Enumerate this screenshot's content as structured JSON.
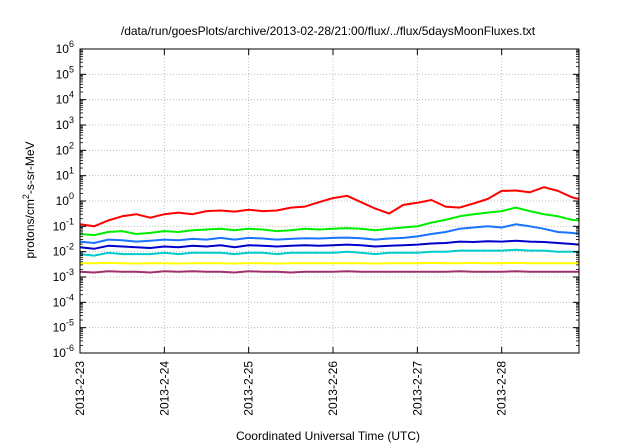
{
  "chart_data": {
    "type": "line",
    "title": "/data/run/goesPlots/archive/2013-02-28/21:00/flux/../flux/5daysMoonFluxes.txt",
    "xlabel": "Coordinated Universal Time (UTC)",
    "ylabel": "protons/cm²-s-sr-MeV",
    "yscale": "log",
    "ylim": [
      1e-06,
      1000000.0
    ],
    "xlim": [
      "2013-02-23 00:00",
      "2013-02-28 22:00"
    ],
    "y_ticks": [
      {
        "value": 1e-06,
        "base": "10",
        "exp": "-6"
      },
      {
        "value": 1e-05,
        "base": "10",
        "exp": "-5"
      },
      {
        "value": 0.0001,
        "base": "10",
        "exp": "-4"
      },
      {
        "value": 0.001,
        "base": "10",
        "exp": "-3"
      },
      {
        "value": 0.01,
        "base": "10",
        "exp": "-2"
      },
      {
        "value": 0.1,
        "base": "10",
        "exp": "-1"
      },
      {
        "value": 1,
        "base": "10",
        "exp": "0"
      },
      {
        "value": 10.0,
        "base": "10",
        "exp": "1"
      },
      {
        "value": 100.0,
        "base": "10",
        "exp": "2"
      },
      {
        "value": 1000.0,
        "base": "10",
        "exp": "3"
      },
      {
        "value": 10000.0,
        "base": "10",
        "exp": "4"
      },
      {
        "value": 100000.0,
        "base": "10",
        "exp": "5"
      },
      {
        "value": 1000000.0,
        "base": "10",
        "exp": "6"
      }
    ],
    "x_ticks": [
      {
        "value": "2013-02-23 00:00",
        "label": "2013-2-23"
      },
      {
        "value": "2013-02-24 00:00",
        "label": "2013-2-24"
      },
      {
        "value": "2013-02-25 00:00",
        "label": "2013-2-25"
      },
      {
        "value": "2013-02-26 00:00",
        "label": "2013-2-26"
      },
      {
        "value": "2013-02-27 00:00",
        "label": "2013-2-27"
      },
      {
        "value": "2013-02-28 00:00",
        "label": "2013-2-28"
      }
    ],
    "grid": true,
    "legend": "none",
    "x": [
      "2013-02-23 00:00",
      "2013-02-23 04:00",
      "2013-02-23 08:00",
      "2013-02-23 12:00",
      "2013-02-23 16:00",
      "2013-02-23 20:00",
      "2013-02-24 00:00",
      "2013-02-24 04:00",
      "2013-02-24 08:00",
      "2013-02-24 12:00",
      "2013-02-24 16:00",
      "2013-02-24 20:00",
      "2013-02-25 00:00",
      "2013-02-25 04:00",
      "2013-02-25 08:00",
      "2013-02-25 12:00",
      "2013-02-25 16:00",
      "2013-02-25 20:00",
      "2013-02-26 00:00",
      "2013-02-26 04:00",
      "2013-02-26 08:00",
      "2013-02-26 12:00",
      "2013-02-26 16:00",
      "2013-02-26 20:00",
      "2013-02-27 00:00",
      "2013-02-27 04:00",
      "2013-02-27 08:00",
      "2013-02-27 12:00",
      "2013-02-27 16:00",
      "2013-02-27 20:00",
      "2013-02-28 00:00",
      "2013-02-28 04:00",
      "2013-02-28 08:00",
      "2013-02-28 12:00",
      "2013-02-28 16:00",
      "2013-02-28 20:00",
      "2013-02-28 22:00"
    ],
    "series": [
      {
        "color": "#ff0000",
        "values": [
          0.12,
          0.1,
          0.17,
          0.25,
          0.3,
          0.22,
          0.3,
          0.35,
          0.3,
          0.4,
          0.42,
          0.38,
          0.45,
          0.4,
          0.42,
          0.55,
          0.6,
          0.9,
          1.3,
          1.6,
          0.9,
          0.5,
          0.32,
          0.7,
          0.85,
          1.1,
          0.6,
          0.55,
          0.8,
          1.2,
          2.5,
          2.6,
          2.2,
          3.5,
          2.5,
          1.4,
          1.2
        ]
      },
      {
        "color": "#00ee00",
        "values": [
          0.05,
          0.045,
          0.06,
          0.065,
          0.05,
          0.055,
          0.065,
          0.06,
          0.07,
          0.075,
          0.08,
          0.07,
          0.08,
          0.075,
          0.065,
          0.07,
          0.08,
          0.075,
          0.08,
          0.085,
          0.08,
          0.07,
          0.08,
          0.09,
          0.1,
          0.14,
          0.18,
          0.25,
          0.3,
          0.35,
          0.4,
          0.55,
          0.4,
          0.3,
          0.25,
          0.18,
          0.17
        ]
      },
      {
        "color": "#1874ff",
        "values": [
          0.025,
          0.022,
          0.03,
          0.028,
          0.025,
          0.027,
          0.03,
          0.028,
          0.032,
          0.03,
          0.035,
          0.03,
          0.035,
          0.033,
          0.03,
          0.032,
          0.034,
          0.033,
          0.035,
          0.036,
          0.034,
          0.03,
          0.033,
          0.035,
          0.04,
          0.05,
          0.06,
          0.08,
          0.09,
          0.1,
          0.09,
          0.12,
          0.1,
          0.08,
          0.06,
          0.055,
          0.05
        ]
      },
      {
        "color": "#0000cc",
        "values": [
          0.015,
          0.013,
          0.017,
          0.016,
          0.015,
          0.014,
          0.016,
          0.015,
          0.017,
          0.016,
          0.018,
          0.015,
          0.018,
          0.017,
          0.016,
          0.017,
          0.018,
          0.017,
          0.018,
          0.019,
          0.018,
          0.016,
          0.017,
          0.018,
          0.019,
          0.021,
          0.022,
          0.025,
          0.024,
          0.026,
          0.025,
          0.027,
          0.025,
          0.024,
          0.022,
          0.02,
          0.019
        ]
      },
      {
        "color": "#00cccc",
        "values": [
          0.008,
          0.007,
          0.009,
          0.008,
          0.008,
          0.008,
          0.009,
          0.008,
          0.009,
          0.009,
          0.009,
          0.008,
          0.009,
          0.009,
          0.008,
          0.009,
          0.009,
          0.009,
          0.009,
          0.01,
          0.009,
          0.008,
          0.009,
          0.009,
          0.009,
          0.01,
          0.01,
          0.011,
          0.011,
          0.011,
          0.011,
          0.012,
          0.011,
          0.011,
          0.01,
          0.01,
          0.01
        ]
      },
      {
        "color": "#ffff00",
        "values": [
          0.0035,
          0.0035,
          0.0036,
          0.0035,
          0.0034,
          0.0035,
          0.0035,
          0.0034,
          0.0035,
          0.0035,
          0.0035,
          0.0034,
          0.0035,
          0.0035,
          0.0034,
          0.0035,
          0.0035,
          0.0035,
          0.0035,
          0.0035,
          0.0035,
          0.0034,
          0.0035,
          0.0035,
          0.0035,
          0.0036,
          0.0035,
          0.0035,
          0.0036,
          0.0035,
          0.0035,
          0.0036,
          0.0035,
          0.0035,
          0.0035,
          0.0035,
          0.0035
        ]
      },
      {
        "color": "#a0306a",
        "values": [
          0.0016,
          0.0015,
          0.0017,
          0.0016,
          0.0016,
          0.0015,
          0.0017,
          0.0016,
          0.0017,
          0.0016,
          0.0016,
          0.0015,
          0.0017,
          0.0016,
          0.0016,
          0.0015,
          0.0016,
          0.0016,
          0.0016,
          0.0017,
          0.0016,
          0.0016,
          0.0016,
          0.0016,
          0.0016,
          0.0016,
          0.0016,
          0.0017,
          0.0016,
          0.0016,
          0.0016,
          0.0017,
          0.0016,
          0.0016,
          0.0016,
          0.0016,
          0.0016
        ]
      }
    ]
  }
}
